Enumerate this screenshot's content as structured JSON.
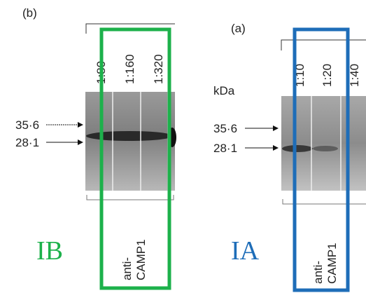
{
  "panels": [
    {
      "label": "(b)",
      "dilutions": [
        "1:80",
        "1:160",
        "1:320"
      ],
      "markers": [
        "35·6",
        "28·1"
      ],
      "antibody": [
        "anti-",
        "CAMP1"
      ],
      "method": "IB"
    },
    {
      "label": "(a)",
      "unit": "kDa",
      "dilutions": [
        "1:10",
        "1:20",
        "1:40"
      ],
      "markers": [
        "35·6",
        "28·1"
      ],
      "antibody": [
        "anti-",
        "CAMP1"
      ],
      "method": "IA"
    }
  ]
}
